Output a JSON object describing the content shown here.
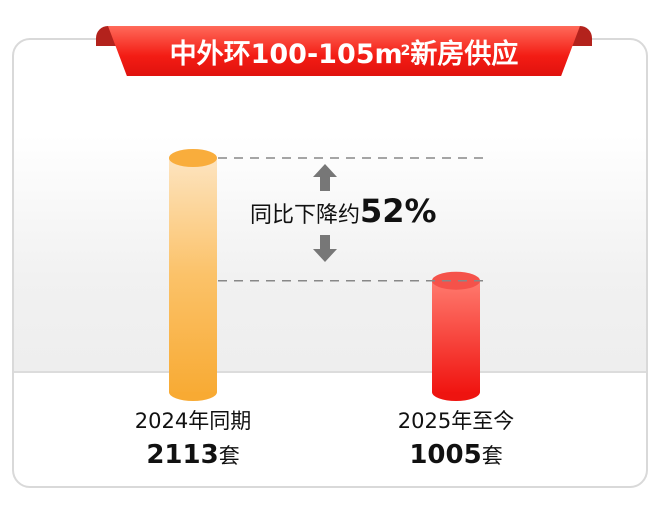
{
  "title": {
    "main_a": "中外环100-105m",
    "sup": "2",
    "main_b": "新房供应"
  },
  "colors": {
    "bar_2024": "#f9ad3c",
    "bar_2025": "#f01d19",
    "ribbon": "#f31c14"
  },
  "annotation": {
    "text": "同比下降约",
    "value": "52%"
  },
  "chart_data": {
    "type": "bar",
    "categories": [
      "2024年同期",
      "2025年至今"
    ],
    "values": [
      2113,
      1005
    ],
    "value_labels": [
      "2113",
      "1005"
    ],
    "unit": "套",
    "title": "中外环100-105m²新房供应",
    "grid": false
  }
}
